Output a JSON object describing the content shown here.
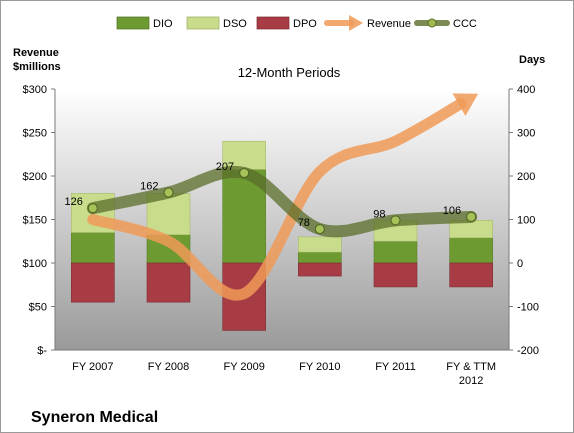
{
  "chart_data": {
    "type": "bar",
    "title": "12-Month Periods",
    "company": "Syneron Medical",
    "categories": [
      "FY 2007",
      "FY 2008",
      "FY 2009",
      "FY 2010",
      "FY 2011",
      "FY & TTM 2012"
    ],
    "left_axis": {
      "title_line1": "Revenue",
      "title_line2": "$millions",
      "ylim": [
        0,
        300
      ],
      "ticks": [
        0,
        50,
        100,
        150,
        200,
        250,
        300
      ],
      "tick_labels": [
        "$-",
        "$50",
        "$100",
        "$150",
        "$200",
        "$250",
        "$300"
      ]
    },
    "right_axis": {
      "title": "Days",
      "ylim": [
        -200,
        400
      ],
      "ticks": [
        -200,
        -100,
        0,
        100,
        200,
        300,
        400
      ],
      "tick_labels": [
        "-200",
        "-100",
        "0",
        "100",
        "200",
        "300",
        "400"
      ]
    },
    "series": [
      {
        "name": "DIO",
        "kind": "bar",
        "axis": "right",
        "values": [
          70,
          65,
          215,
          25,
          50,
          58
        ],
        "color": "#6e9a32"
      },
      {
        "name": "DSO",
        "kind": "bar",
        "axis": "right",
        "values": [
          90,
          95,
          65,
          35,
          48,
          40
        ],
        "color": "#c9dc8c"
      },
      {
        "name": "DPO",
        "kind": "bar",
        "axis": "right",
        "values": [
          -90,
          -90,
          -155,
          -30,
          -55,
          -55
        ],
        "color": "#a83c44"
      },
      {
        "name": "Revenue",
        "kind": "line",
        "axis": "left",
        "values": [
          150,
          125,
          65,
          205,
          240,
          290
        ],
        "color": "#f09a57"
      },
      {
        "name": "CCC",
        "kind": "line",
        "axis": "right",
        "values": [
          126,
          162,
          207,
          78,
          98,
          106
        ],
        "color": "#5a6e2a"
      }
    ],
    "ccc_labels": [
      "126",
      "162",
      "207",
      "78",
      "98",
      "106"
    ],
    "grid": false,
    "legend_position": "top"
  }
}
